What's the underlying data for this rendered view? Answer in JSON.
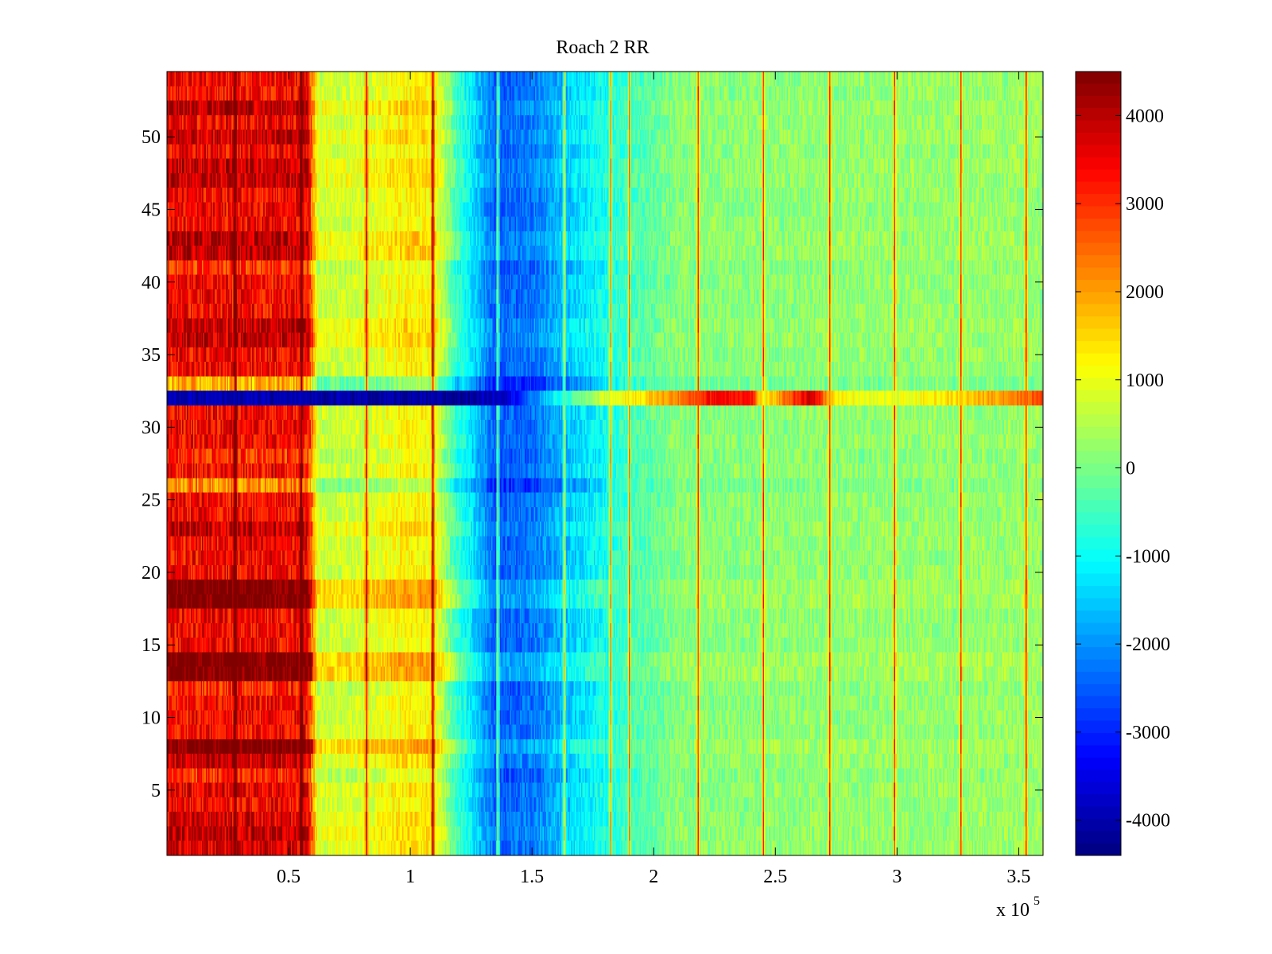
{
  "chart_data": {
    "type": "heatmap",
    "title": "Roach 2 RR",
    "xlabel": "",
    "ylabel": "",
    "x_exponent_label": "x 10",
    "x_exponent": "5",
    "xlim": [
      0,
      3.6
    ],
    "ylim": [
      0.5,
      54.5
    ],
    "x_ticks": [
      0.5,
      1,
      1.5,
      2,
      2.5,
      3,
      3.5
    ],
    "x_tick_labels": [
      "0.5",
      "1",
      "1.5",
      "2",
      "2.5",
      "3",
      "3.5"
    ],
    "y_ticks": [
      5,
      10,
      15,
      20,
      25,
      30,
      35,
      40,
      45,
      50
    ],
    "y_tick_labels": [
      "5",
      "10",
      "15",
      "20",
      "25",
      "30",
      "35",
      "40",
      "45",
      "50"
    ],
    "rows": 54,
    "colorbar": {
      "clim": [
        -4400,
        4500
      ],
      "ticks": [
        -4000,
        -3000,
        -2000,
        -1000,
        0,
        1000,
        2000,
        3000,
        4000
      ],
      "tick_labels": [
        "-4000",
        "-3000",
        "-2000",
        "-1000",
        "0",
        "1000",
        "2000",
        "3000",
        "4000"
      ],
      "colormap": "jet"
    },
    "profile": {
      "x": [
        0,
        0.58,
        0.62,
        0.8,
        1.0,
        1.1,
        1.18,
        1.35,
        1.5,
        1.7,
        1.9,
        2.1,
        2.5,
        3.0,
        3.6
      ],
      "value": [
        3400,
        3400,
        700,
        750,
        1300,
        1100,
        -400,
        -2500,
        -2300,
        -1300,
        -500,
        100,
        150,
        200,
        250
      ]
    },
    "row_offsets": [
      {
        "rows": [
          1
        ],
        "offset": 300
      },
      {
        "rows": [
          2
        ],
        "offset": 500
      },
      {
        "rows": [
          3
        ],
        "offset": 300
      },
      {
        "rows": [
          5
        ],
        "offset": 200
      },
      {
        "rows": [
          6
        ],
        "offset": -400
      },
      {
        "rows": [
          7
        ],
        "offset": 400
      },
      {
        "rows": [
          8
        ],
        "offset": 1300
      },
      {
        "rows": [
          12
        ],
        "offset": -300
      },
      {
        "rows": [
          13,
          14
        ],
        "offset": 1300
      },
      {
        "rows": [
          18,
          19
        ],
        "offset": 1300
      },
      {
        "rows": [
          23
        ],
        "offset": 500
      },
      {
        "rows": [
          26
        ],
        "offset": -1200
      },
      {
        "rows": [
          28
        ],
        "offset": -400
      },
      {
        "rows": [
          33
        ],
        "offset": -1600
      },
      {
        "rows": [
          36,
          37
        ],
        "offset": 500
      },
      {
        "rows": [
          41
        ],
        "offset": -400
      },
      {
        "rows": [
          42,
          43
        ],
        "offset": 600
      },
      {
        "rows": [
          47,
          48
        ],
        "offset": 500
      },
      {
        "rows": [
          50
        ],
        "offset": 500
      },
      {
        "rows": [
          52
        ],
        "offset": 600
      }
    ],
    "anomalous_row": {
      "row": 32,
      "x": [
        0,
        0.6,
        1.2,
        1.4,
        1.6,
        1.8,
        1.95,
        2.15,
        2.25,
        2.4,
        2.45,
        2.55,
        2.65,
        2.75,
        3.0,
        3.3,
        3.6
      ],
      "value": [
        -4000,
        -4000,
        -4200,
        -3600,
        -1000,
        800,
        1400,
        2600,
        3500,
        3300,
        1000,
        2600,
        3800,
        1200,
        900,
        1600,
        2800
      ]
    },
    "vertical_streaks": [
      0.28,
      0.55,
      0.82,
      1.09,
      1.36,
      1.63,
      1.82,
      1.9,
      2.18,
      2.45,
      2.72,
      2.99,
      3.26,
      3.53
    ]
  }
}
